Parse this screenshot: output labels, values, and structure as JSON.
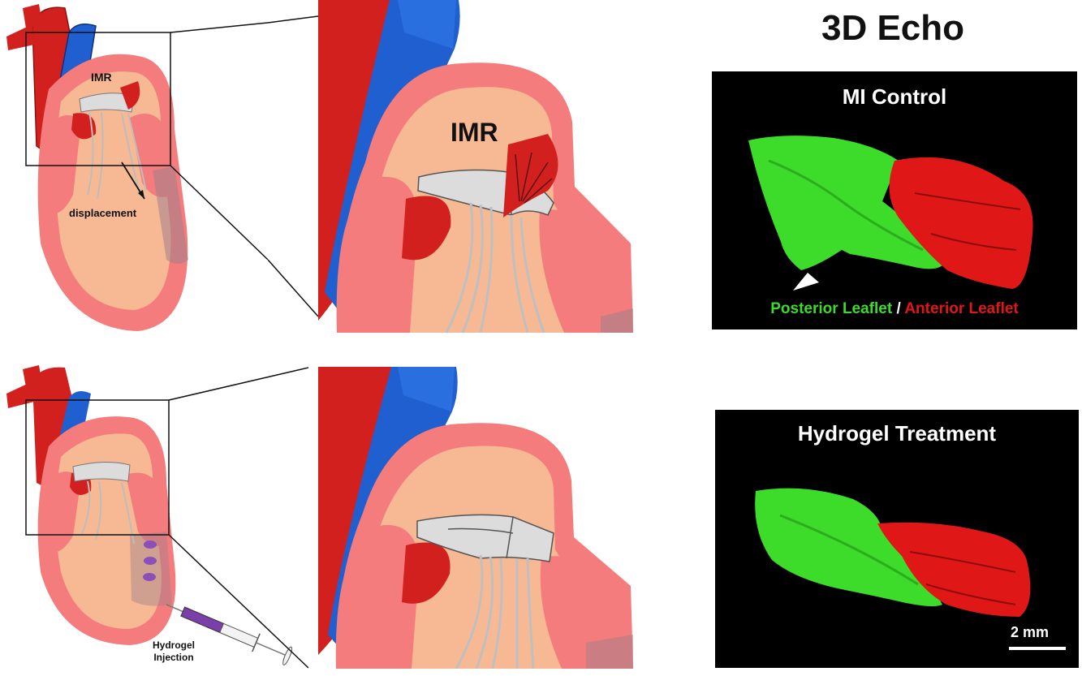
{
  "echo_title": "3D Echo",
  "top_row": {
    "label_imr_small": "IMR",
    "label_displacement": "displacement",
    "label_imr_large": "IMR"
  },
  "bottom_row": {
    "label_hydrogel": "Hydrogel",
    "label_injection": "Injection"
  },
  "panel_mi": {
    "title": "MI Control",
    "legend_posterior": "Posterior Leaflet",
    "legend_separator": " / ",
    "legend_anterior": "Anterior Leaflet"
  },
  "panel_hydrogel": {
    "title": "Hydrogel Treatment",
    "scale_bar_label": "2 mm"
  },
  "colors": {
    "myocardium": "#f47c7c",
    "chamber": "#f6b994",
    "aorta": "#d2201f",
    "vena": "#1f5fd0",
    "valve": "#dcdcdc",
    "posterior_leaflet": "#3ddb2a",
    "anterior_leaflet": "#e01717",
    "hydrogel": "#8a4fb8"
  }
}
